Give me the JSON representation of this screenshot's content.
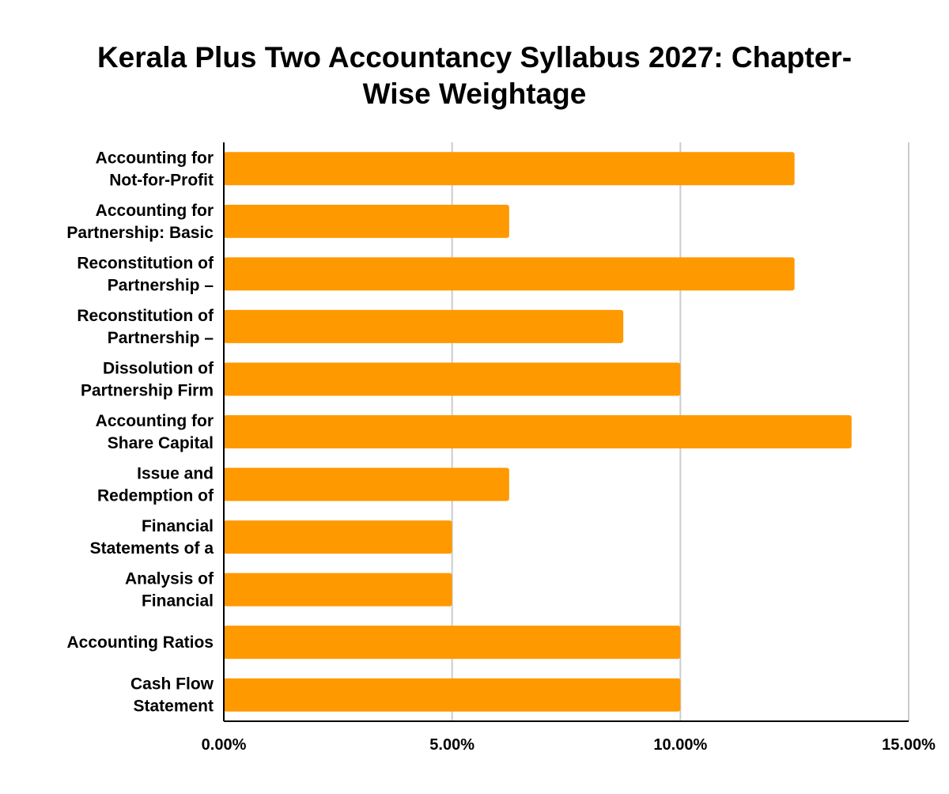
{
  "chart_data": {
    "type": "bar",
    "orientation": "horizontal",
    "title_lines": [
      "Kerala Plus Two Accountancy Syllabus 2027: Chapter-",
      "Wise Weightage"
    ],
    "categories": [
      [
        "Accounting for",
        "Not-for-Profit"
      ],
      [
        "Accounting for",
        "Partnership: Basic"
      ],
      [
        "Reconstitution of",
        "Partnership –"
      ],
      [
        "Reconstitution of",
        "Partnership –"
      ],
      [
        "Dissolution of",
        "Partnership Firm"
      ],
      [
        "Accounting for",
        "Share Capital"
      ],
      [
        "Issue and",
        "Redemption of"
      ],
      [
        "Financial",
        "Statements of a"
      ],
      [
        "Analysis of",
        "Financial"
      ],
      [
        "Accounting Ratios"
      ],
      [
        "Cash Flow",
        "Statement"
      ]
    ],
    "values": [
      12.5,
      6.25,
      12.5,
      8.75,
      10,
      13.75,
      6.25,
      5,
      5,
      10,
      10
    ],
    "xlim": [
      0,
      15
    ],
    "xticks": [
      0,
      5,
      10,
      15
    ],
    "xtick_labels": [
      "0.00%",
      "5.00%",
      "10.00%",
      "15.00%"
    ],
    "xlabel": "",
    "ylabel": "",
    "grid": "vertical",
    "bar_color": "#FF9900",
    "grid_color": "#cccccc",
    "axis_color": "#000000"
  }
}
